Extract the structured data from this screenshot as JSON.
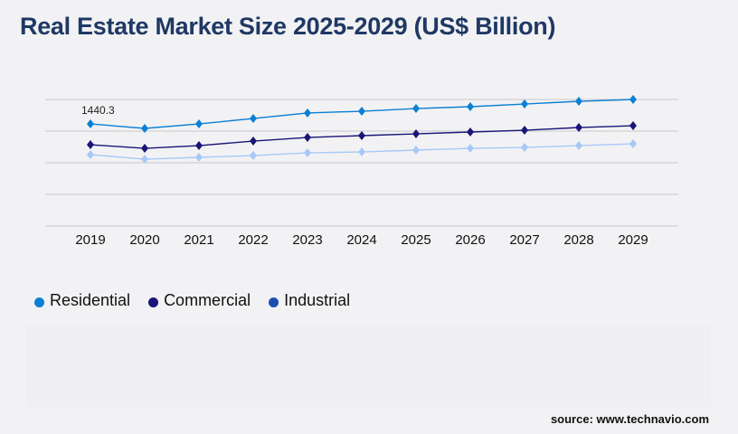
{
  "title": "Real Estate Market Size 2025-2029 (US$ Billion)",
  "source": "source: www.technavio.com",
  "chart_data": {
    "type": "line",
    "title": "Real Estate Market Size 2025-2029 (US$ Billion)",
    "xlabel": "",
    "ylabel": "",
    "categories": [
      "2019",
      "2020",
      "2021",
      "2022",
      "2023",
      "2024",
      "2025",
      "2026",
      "2027",
      "2028",
      "2029"
    ],
    "ylim": [
      0,
      1785
    ],
    "grid": true,
    "legend": "bottom-left",
    "series": [
      {
        "name": "Residential",
        "color": "#0a7fd4",
        "values": [
          1440.3,
          1377,
          1440,
          1517,
          1594,
          1619,
          1657,
          1683,
          1721,
          1759,
          1785
        ]
      },
      {
        "name": "Commercial",
        "color": "#1a1577",
        "values": [
          1147,
          1096,
          1134,
          1198,
          1249,
          1275,
          1300,
          1326,
          1351,
          1389,
          1415
        ]
      },
      {
        "name": "Industrial",
        "color": "#a8c8f8",
        "legend_color": "#1e4fb0",
        "values": [
          1007,
          943,
          969,
          994,
          1032,
          1045,
          1071,
          1096,
          1109,
          1134,
          1160
        ]
      }
    ],
    "annotations": [
      {
        "series": "Residential",
        "category": "2019",
        "text": "1440.3"
      }
    ]
  }
}
